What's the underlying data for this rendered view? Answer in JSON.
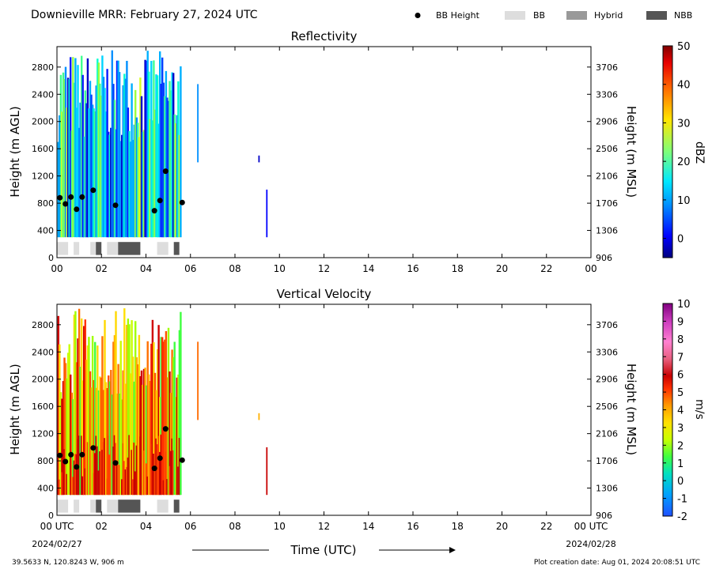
{
  "header": {
    "title": "Downieville MRR:  February 27, 2024 UTC"
  },
  "legend": [
    {
      "label": "BB Height",
      "color": "#000000",
      "kind": "dot"
    },
    {
      "label": "BB",
      "color": "#dddddd",
      "kind": "box"
    },
    {
      "label": "Hybrid",
      "color": "#999999",
      "kind": "box"
    },
    {
      "label": "NBB",
      "color": "#555555",
      "kind": "box"
    }
  ],
  "footer": {
    "location": "39.5633 N, 120.8243 W, 906 m",
    "creation": "Plot creation date: Aug 01, 2024 20:08:51 UTC",
    "time_label": "Time (UTC)",
    "start_date": "2024/02/27",
    "end_date": "2024/02/28"
  },
  "chart_data": [
    {
      "type": "heatmap",
      "title": "Reflectivity",
      "ylabel": "Height (m AGL)",
      "ylabel_right": "Height (m MSL)",
      "xlim": [
        0,
        24
      ],
      "ylim": [
        0,
        3100
      ],
      "x_ticks": [
        "00",
        "02",
        "04",
        "06",
        "08",
        "10",
        "12",
        "14",
        "16",
        "18",
        "20",
        "22",
        "00"
      ],
      "y_ticks": [
        0,
        400,
        800,
        1200,
        1600,
        2000,
        2400,
        2800
      ],
      "y_ticks_right": [
        906,
        1306,
        1706,
        2106,
        2506,
        2906,
        3306,
        3706
      ],
      "colorbar": {
        "label": "dBZ",
        "range": [
          -5,
          50
        ],
        "ticks": [
          0,
          10,
          20,
          30,
          40,
          50
        ]
      },
      "bb_height": [
        {
          "x": 0.13,
          "y": 880
        },
        {
          "x": 0.38,
          "y": 790
        },
        {
          "x": 0.63,
          "y": 890
        },
        {
          "x": 0.88,
          "y": 710
        },
        {
          "x": 1.13,
          "y": 890
        },
        {
          "x": 1.63,
          "y": 990
        },
        {
          "x": 2.63,
          "y": 770
        },
        {
          "x": 4.38,
          "y": 690
        },
        {
          "x": 4.63,
          "y": 840
        },
        {
          "x": 4.88,
          "y": 1270
        },
        {
          "x": 5.63,
          "y": 810
        }
      ],
      "bb_type_segments": [
        {
          "start": 0.0,
          "end": 0.5,
          "type": "BB"
        },
        {
          "start": 0.75,
          "end": 1.0,
          "type": "BB"
        },
        {
          "start": 1.5,
          "end": 1.75,
          "type": "BB"
        },
        {
          "start": 1.75,
          "end": 2.0,
          "type": "NBB"
        },
        {
          "start": 2.25,
          "end": 2.75,
          "type": "BB"
        },
        {
          "start": 2.75,
          "end": 3.75,
          "type": "NBB"
        },
        {
          "start": 4.5,
          "end": 5.0,
          "type": "BB"
        },
        {
          "start": 5.25,
          "end": 5.5,
          "type": "NBB"
        }
      ]
    },
    {
      "type": "heatmap",
      "title": "Vertical Velocity",
      "ylabel": "Height (m AGL)",
      "ylabel_right": "Height (m MSL)",
      "xlim": [
        0,
        24
      ],
      "ylim": [
        0,
        3100
      ],
      "x_ticks": [
        "00 UTC",
        "02",
        "04",
        "06",
        "08",
        "10",
        "12",
        "14",
        "16",
        "18",
        "20",
        "22",
        "00 UTC"
      ],
      "y_ticks": [
        0,
        400,
        800,
        1200,
        1600,
        2000,
        2400,
        2800
      ],
      "y_ticks_right": [
        906,
        1306,
        1706,
        2106,
        2506,
        2906,
        3306,
        3706
      ],
      "colorbar": {
        "label": "m/s",
        "range": [
          -2,
          10
        ],
        "ticks": [
          -2,
          -1,
          0,
          1,
          2,
          3,
          4,
          5,
          6,
          7,
          8,
          9,
          10
        ]
      },
      "bb_height": [
        {
          "x": 0.13,
          "y": 880
        },
        {
          "x": 0.38,
          "y": 790
        },
        {
          "x": 0.63,
          "y": 890
        },
        {
          "x": 0.88,
          "y": 710
        },
        {
          "x": 1.13,
          "y": 890
        },
        {
          "x": 1.63,
          "y": 990
        },
        {
          "x": 2.63,
          "y": 770
        },
        {
          "x": 4.38,
          "y": 690
        },
        {
          "x": 4.63,
          "y": 840
        },
        {
          "x": 4.88,
          "y": 1270
        },
        {
          "x": 5.63,
          "y": 810
        }
      ],
      "bb_type_segments": [
        {
          "start": 0.0,
          "end": 0.5,
          "type": "BB"
        },
        {
          "start": 0.75,
          "end": 1.0,
          "type": "BB"
        },
        {
          "start": 1.5,
          "end": 1.75,
          "type": "BB"
        },
        {
          "start": 1.75,
          "end": 2.0,
          "type": "NBB"
        },
        {
          "start": 2.25,
          "end": 2.75,
          "type": "BB"
        },
        {
          "start": 2.75,
          "end": 3.75,
          "type": "NBB"
        },
        {
          "start": 4.5,
          "end": 5.0,
          "type": "BB"
        },
        {
          "start": 5.25,
          "end": 5.5,
          "type": "NBB"
        }
      ]
    }
  ]
}
